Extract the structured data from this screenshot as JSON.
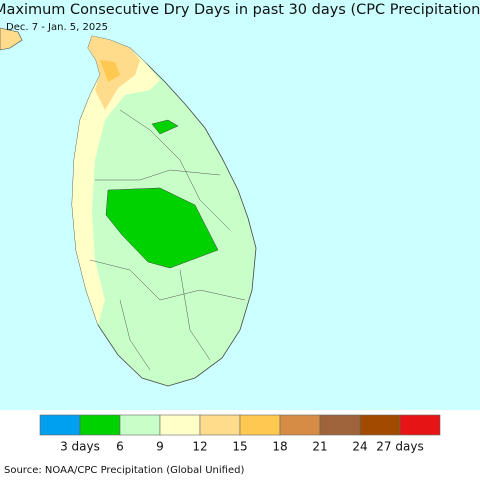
{
  "map": {
    "title": "Maximum Consecutive Dry Days in past 30 days (CPC Precipitation)",
    "subtitle": "Dec. 7 - Jan. 5, 2025"
  },
  "legend": {
    "colors": [
      "#00a0f0",
      "#00d200",
      "#c8ffc8",
      "#ffffc8",
      "#ffdc8c",
      "#ffc850",
      "#d78c46",
      "#a0643c",
      "#a04b00",
      "#e61414"
    ],
    "labels": [
      "3 days",
      "6",
      "9",
      "12",
      "15",
      "18",
      "21",
      "24",
      "27 days"
    ]
  },
  "source": "Source: NOAA/CPC Precipitation (Global Unified)"
}
